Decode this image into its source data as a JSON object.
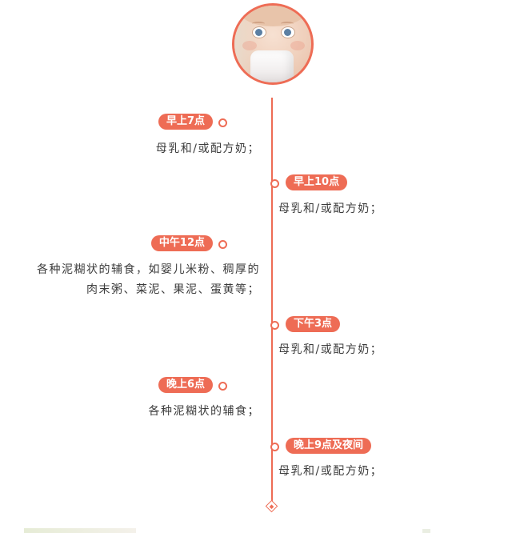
{
  "colors": {
    "accent": "#ee6c55",
    "text": "#3c3c3c",
    "pill_text": "#ffffff"
  },
  "timeline": {
    "entries": [
      {
        "time": "早上7点",
        "side": "left",
        "desc": "母乳和/或配方奶；"
      },
      {
        "time": "早上10点",
        "side": "right",
        "desc": "母乳和/或配方奶；"
      },
      {
        "time": "中午12点",
        "side": "left",
        "desc": "各种泥糊状的辅食，如婴儿米粉、稠厚的\n肉末粥、菜泥、果泥、蛋黄等；"
      },
      {
        "time": "下午3点",
        "side": "right",
        "desc": "母乳和/或配方奶；"
      },
      {
        "time": "晚上6点",
        "side": "left",
        "desc": "各种泥糊状的辅食；"
      },
      {
        "time": "晚上9点及夜间",
        "side": "right",
        "desc": "母乳和/或配方奶；"
      }
    ]
  }
}
